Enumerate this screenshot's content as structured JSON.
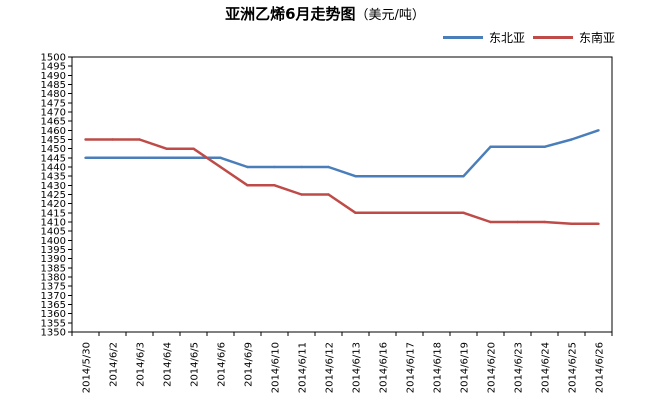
{
  "chart_data": {
    "type": "line",
    "title": "亚洲乙烯6月走势图",
    "unit": "（美元/吨）",
    "xlabel": "",
    "ylabel": "",
    "ylim": [
      1350,
      1500
    ],
    "ytick_step": 5,
    "grid": "none",
    "legend_position": "top-right",
    "categories": [
      "2014/5/30",
      "2014/6/2",
      "2014/6/3",
      "2014/6/4",
      "2014/6/5",
      "2014/6/6",
      "2014/6/9",
      "2014/6/10",
      "2014/6/11",
      "2014/6/12",
      "2014/6/13",
      "2014/6/16",
      "2014/6/17",
      "2014/6/18",
      "2014/6/19",
      "2014/6/20",
      "2014/6/23",
      "2014/6/24",
      "2014/6/25",
      "2014/6/26"
    ],
    "series": [
      {
        "name": "东北亚",
        "color": "#4A7EBB",
        "values": [
          1445,
          1445,
          1445,
          1445,
          1445,
          1445,
          1440,
          1440,
          1440,
          1440,
          1435,
          1435,
          1435,
          1435,
          1435,
          1451,
          1451,
          1451,
          1455,
          1460
        ]
      },
      {
        "name": "东南亚",
        "color": "#BE4B48",
        "values": [
          1455,
          1455,
          1455,
          1450,
          1450,
          1440,
          1430,
          1430,
          1425,
          1425,
          1415,
          1415,
          1415,
          1415,
          1415,
          1410,
          1410,
          1410,
          1409,
          1409
        ]
      }
    ]
  }
}
